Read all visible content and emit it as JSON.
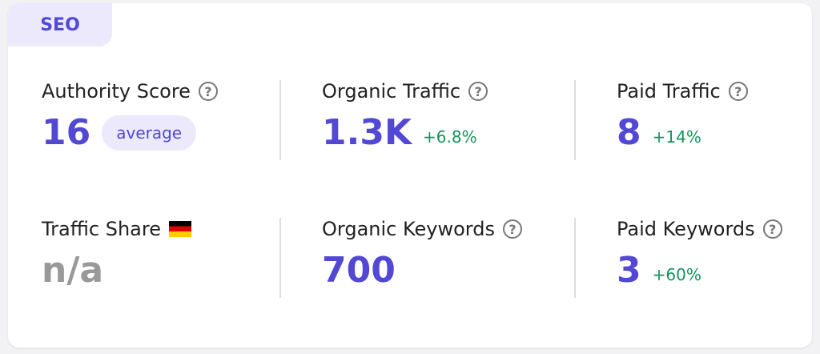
{
  "tab": "SEO",
  "metrics": [
    {
      "label": "Authority Score",
      "value": "16",
      "badge": "average"
    },
    {
      "label": "Organic Traffic",
      "value": "1.3K",
      "change": "+6.8%"
    },
    {
      "label": "Paid Traffic",
      "value": "8",
      "change": "+14%"
    },
    {
      "label": "Traffic Share",
      "value": "n/a"
    },
    {
      "label": "Organic Keywords",
      "value": "700"
    },
    {
      "label": "Paid Keywords",
      "value": "3",
      "change": "+60%"
    }
  ]
}
